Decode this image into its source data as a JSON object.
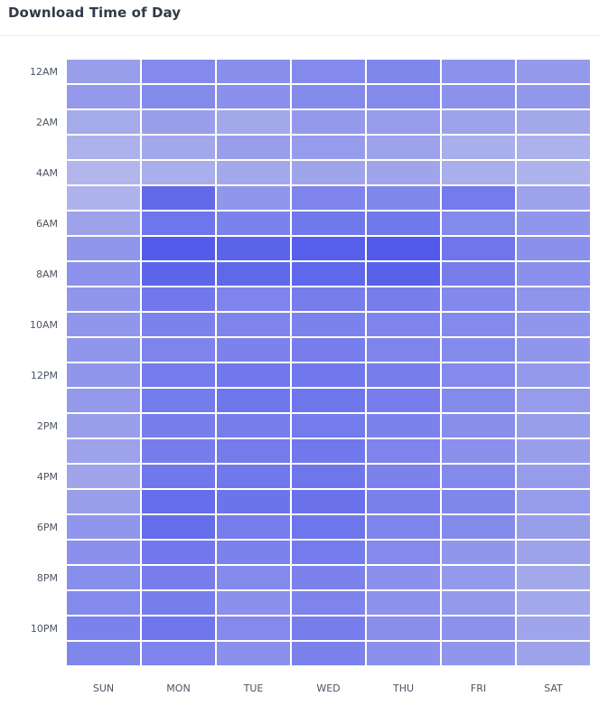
{
  "widget": {
    "title": "Download Time of Day"
  },
  "chart_data": {
    "type": "heatmap",
    "title": "Download Time of Day",
    "x_categories": [
      "SUN",
      "MON",
      "TUE",
      "WED",
      "THU",
      "FRI",
      "SAT"
    ],
    "y_categories": [
      "12AM",
      "1AM",
      "2AM",
      "3AM",
      "4AM",
      "5AM",
      "6AM",
      "7AM",
      "8AM",
      "9AM",
      "10AM",
      "11AM",
      "12PM",
      "1PM",
      "2PM",
      "3PM",
      "4PM",
      "5PM",
      "6PM",
      "7PM",
      "8PM",
      "9PM",
      "10PM",
      "11PM"
    ],
    "y_tick_labels": [
      "12AM",
      "",
      "2AM",
      "",
      "4AM",
      "",
      "6AM",
      "",
      "8AM",
      "",
      "10AM",
      "",
      "12PM",
      "",
      "2PM",
      "",
      "4PM",
      "",
      "6PM",
      "",
      "8PM",
      "",
      "10PM",
      ""
    ],
    "color_low": "#c8cbec",
    "color_high": "#4c55ea",
    "value_range": [
      0,
      100
    ],
    "values": [
      [
        38,
        55,
        52,
        55,
        58,
        48,
        42
      ],
      [
        42,
        55,
        50,
        55,
        55,
        48,
        44
      ],
      [
        28,
        38,
        30,
        42,
        40,
        35,
        30
      ],
      [
        22,
        30,
        38,
        40,
        35,
        25,
        22
      ],
      [
        18,
        25,
        30,
        32,
        32,
        25,
        20
      ],
      [
        20,
        82,
        45,
        60,
        58,
        68,
        35
      ],
      [
        35,
        72,
        62,
        70,
        70,
        55,
        45
      ],
      [
        45,
        94,
        88,
        92,
        97,
        72,
        50
      ],
      [
        48,
        86,
        84,
        85,
        90,
        65,
        50
      ],
      [
        45,
        70,
        60,
        65,
        65,
        56,
        46
      ],
      [
        45,
        62,
        60,
        62,
        60,
        55,
        45
      ],
      [
        45,
        60,
        62,
        65,
        60,
        55,
        45
      ],
      [
        45,
        68,
        70,
        70,
        65,
        55,
        42
      ],
      [
        42,
        68,
        72,
        72,
        65,
        55,
        40
      ],
      [
        38,
        65,
        65,
        68,
        62,
        52,
        38
      ],
      [
        35,
        66,
        68,
        70,
        60,
        50,
        38
      ],
      [
        32,
        70,
        70,
        72,
        62,
        55,
        40
      ],
      [
        38,
        80,
        74,
        76,
        64,
        58,
        40
      ],
      [
        45,
        80,
        65,
        72,
        60,
        55,
        38
      ],
      [
        50,
        70,
        62,
        68,
        55,
        45,
        35
      ],
      [
        52,
        65,
        55,
        62,
        50,
        42,
        30
      ],
      [
        55,
        65,
        50,
        60,
        48,
        42,
        30
      ],
      [
        62,
        72,
        55,
        65,
        52,
        48,
        32
      ],
      [
        58,
        60,
        50,
        62,
        50,
        45,
        35
      ]
    ]
  }
}
